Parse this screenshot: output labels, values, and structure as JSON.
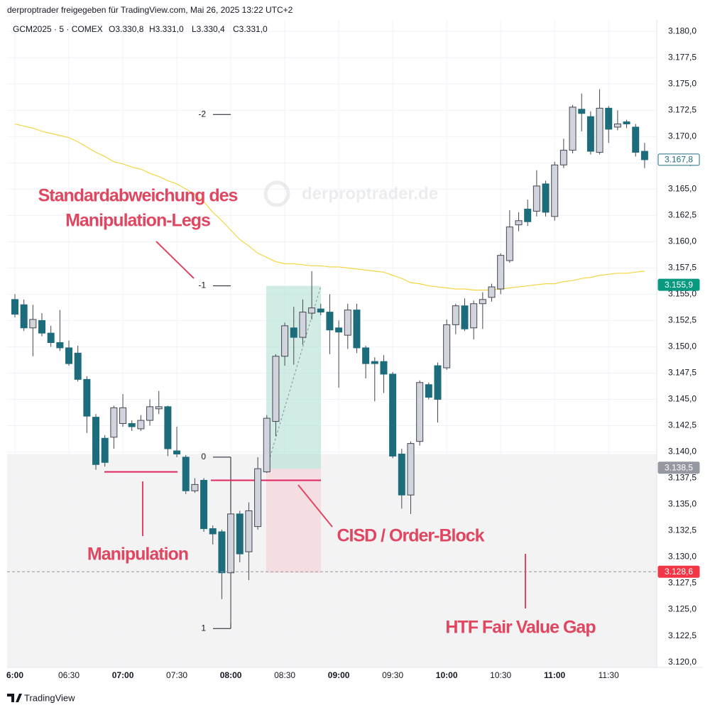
{
  "header": "derproptrader freigegeben für TradingView.com, Mai 26, 2025 13:22 UTC+2",
  "footer": "TradingView",
  "chart_data": {
    "type": "candlestick",
    "symbol": "GCM2025 · 5 · COMEX",
    "ohlc_legend": [
      "O3.330,8",
      "H3.331,0",
      "L3.330,4",
      "C3.331,0"
    ],
    "watermark": "derproptrader.de",
    "categories": [
      "6:00",
      null,
      null,
      null,
      null,
      null,
      "06:30",
      null,
      null,
      null,
      null,
      null,
      "07:00",
      null,
      null,
      null,
      null,
      null,
      "07:30",
      null,
      null,
      null,
      null,
      null,
      "08:00",
      null,
      null,
      null,
      null,
      null,
      "08:30",
      null,
      null,
      null,
      null,
      null,
      "09:00",
      null,
      null,
      null,
      null,
      null,
      "09:30",
      null,
      null,
      null,
      null,
      null,
      "10:00",
      null,
      null,
      null,
      null,
      null,
      "10:30",
      null,
      null,
      null,
      null,
      null,
      "11:00",
      null,
      null,
      null,
      null,
      null,
      "11:30",
      null,
      null,
      null,
      null
    ],
    "open": [
      3154.5,
      3154.0,
      3151.8,
      3152.5,
      3151.3,
      3150.4,
      3149.9,
      3149.4,
      3146.9,
      3143.3,
      3141.3,
      3141.4,
      3142.7,
      3142.7,
      3142.2,
      3143.0,
      3144.1,
      3144.3,
      3140.1,
      3139.5,
      3136.3,
      3137.3,
      3132.7,
      3132.4,
      3128.5,
      3134.1,
      3130.5,
      3132.9,
      3138.1,
      3142.9,
      3149.1,
      3151.8,
      3150.9,
      3153.2,
      3153.6,
      3153.3,
      3151.8,
      3151.1,
      3153.5,
      3149.9,
      3148.6,
      3148.6,
      3147.4,
      3139.8,
      3135.9,
      3141.0,
      3146.4,
      3148.2,
      3148.0,
      3152.1,
      3153.9,
      3151.8,
      3154.1,
      3154.7,
      3155.5,
      3158.2,
      3161.6,
      3163.1,
      3162.9,
      3165.5,
      3162.4,
      3167.3,
      3168.7,
      3172.6,
      3171.9,
      3168.5,
      3172.7,
      3170.9,
      3171.4,
      3170.9,
      3168.6
    ],
    "high": [
      3155.0,
      3154.5,
      3154.0,
      3153.2,
      3152.0,
      3153.5,
      3150.6,
      3150.1,
      3147.2,
      3143.6,
      3141.6,
      3144.4,
      3145.5,
      3143.0,
      3143.5,
      3145.0,
      3145.8,
      3144.4,
      3142.4,
      3139.7,
      3137.5,
      3137.5,
      3133.0,
      3132.6,
      3134.3,
      3134.4,
      3135.2,
      3139.5,
      3143.5,
      3149.3,
      3152.3,
      3153.8,
      3154.5,
      3157.2,
      3154.1,
      3155.0,
      3152.5,
      3154.1,
      3154.1,
      3150.1,
      3149.0,
      3149.2,
      3147.6,
      3140.3,
      3141.0,
      3146.8,
      3146.6,
      3148.5,
      3152.6,
      3154.1,
      3154.6,
      3154.4,
      3155.2,
      3156.0,
      3158.9,
      3163.0,
      3162.8,
      3164.0,
      3166.8,
      3165.8,
      3167.6,
      3169.8,
      3173.0,
      3174.1,
      3172.4,
      3174.5,
      3172.9,
      3172.5,
      3171.6,
      3171.2,
      3169.4
    ],
    "low": [
      3152.8,
      3151.5,
      3149.1,
      3151.0,
      3150.0,
      3149.6,
      3148.2,
      3146.7,
      3141.8,
      3138.3,
      3138.6,
      3140.3,
      3142.4,
      3142.0,
      3142.0,
      3142.5,
      3143.6,
      3139.6,
      3139.5,
      3136.0,
      3136.1,
      3132.4,
      3131.2,
      3126.0,
      3123.7,
      3129.5,
      3127.8,
      3132.6,
      3138.0,
      3141.5,
      3148.2,
      3148.3,
      3150.2,
      3152.6,
      3153.0,
      3149.3,
      3146.1,
      3149.8,
      3149.4,
      3147.0,
      3144.8,
      3145.6,
      3139.4,
      3134.6,
      3134.1,
      3140.6,
      3145.0,
      3142.8,
      3147.8,
      3151.2,
      3151.5,
      3150.7,
      3151.7,
      3154.3,
      3155.0,
      3158.0,
      3161.0,
      3161.5,
      3162.4,
      3162.4,
      3162.0,
      3167.0,
      3168.4,
      3170.5,
      3168.3,
      3168.3,
      3169.4,
      3170.6,
      3170.8,
      3168.1,
      3167.0
    ],
    "close": [
      3153.1,
      3151.8,
      3152.6,
      3151.3,
      3150.4,
      3149.9,
      3148.4,
      3146.9,
      3143.4,
      3138.8,
      3139.0,
      3144.2,
      3144.2,
      3142.4,
      3143.0,
      3144.3,
      3144.3,
      3140.3,
      3139.8,
      3136.3,
      3136.9,
      3132.7,
      3132.2,
      3128.5,
      3134.1,
      3130.3,
      3134.4,
      3138.4,
      3143.2,
      3149.1,
      3152.0,
      3150.9,
      3153.3,
      3153.7,
      3153.3,
      3151.6,
      3151.4,
      3153.5,
      3149.9,
      3148.4,
      3148.4,
      3147.4,
      3139.6,
      3135.9,
      3140.8,
      3146.6,
      3145.2,
      3145.0,
      3152.1,
      3153.9,
      3151.7,
      3154.1,
      3154.5,
      3155.7,
      3158.7,
      3161.4,
      3162.0,
      3161.9,
      3165.3,
      3162.8,
      3167.3,
      3168.7,
      3172.8,
      3172.2,
      3168.6,
      3172.7,
      3170.7,
      3171.2,
      3171.2,
      3168.5,
      3167.8
    ],
    "up_color": "#d1d4dc",
    "down_color": "#1d6c7c",
    "wick_color": "#434651",
    "ma": {
      "color": "#f5d542",
      "values": [
        3171.2,
        3171.0,
        3170.8,
        3170.5,
        3170.3,
        3170.1,
        3169.9,
        3169.5,
        3169.0,
        3168.5,
        3168.1,
        3167.6,
        3167.4,
        3167.1,
        3166.9,
        3166.5,
        3166.2,
        3165.8,
        3165.5,
        3165.0,
        3164.5,
        3163.8,
        3162.8,
        3162.0,
        3161.1,
        3160.2,
        3159.6,
        3158.9,
        3158.5,
        3158.1,
        3157.9,
        3157.9,
        3157.8,
        3157.7,
        3157.7,
        3157.6,
        3157.6,
        3157.5,
        3157.4,
        3157.3,
        3157.2,
        3157.1,
        3156.8,
        3156.5,
        3156.1,
        3156.0,
        3155.8,
        3155.7,
        3155.6,
        3155.5,
        3155.5,
        3155.4,
        3155.4,
        3155.4,
        3155.5,
        3155.6,
        3155.7,
        3155.8,
        3155.9,
        3156.0,
        3156.0,
        3156.2,
        3156.3,
        3156.5,
        3156.6,
        3156.8,
        3156.9,
        3157.0,
        3157.0,
        3157.1,
        3157.2
      ]
    },
    "ylim": [
      3119.5,
      3181.1
    ],
    "yticks": [
      {
        "value": 3120.0,
        "label": "3.120,0"
      },
      {
        "value": 3122.5,
        "label": "3.122,5"
      },
      {
        "value": 3125.0,
        "label": "3.125,0"
      },
      {
        "value": 3127.5,
        "label": "3.127,5"
      },
      {
        "value": 3130.0,
        "label": "3.130,0"
      },
      {
        "value": 3132.5,
        "label": "3.132,5"
      },
      {
        "value": 3135.0,
        "label": "3.135,0"
      },
      {
        "value": 3137.5,
        "label": "3.137,5"
      },
      {
        "value": 3140.0,
        "label": "3.140,0"
      },
      {
        "value": 3142.5,
        "label": "3.142,5"
      },
      {
        "value": 3145.0,
        "label": "3.145,0"
      },
      {
        "value": 3147.5,
        "label": "3.147,5"
      },
      {
        "value": 3150.0,
        "label": "3.150,0"
      },
      {
        "value": 3152.5,
        "label": "3.152,5"
      },
      {
        "value": 3155.0,
        "label": "3.155,0"
      },
      {
        "value": 3157.5,
        "label": "3.157,5"
      },
      {
        "value": 3160.0,
        "label": "3.160,0"
      },
      {
        "value": 3162.5,
        "label": "3.162,5"
      },
      {
        "value": 3165.0,
        "label": "3.165,0"
      },
      {
        "value": 3167.5,
        "label": "3.167,5"
      },
      {
        "value": 3170.0,
        "label": "3.170,0"
      },
      {
        "value": 3172.5,
        "label": "3.172,5"
      },
      {
        "value": 3175.0,
        "label": "3.175,0"
      },
      {
        "value": 3177.5,
        "label": "3.177,5"
      },
      {
        "value": 3180.0,
        "label": "3.180,0"
      }
    ],
    "grid": true,
    "price_labels": [
      {
        "value": 3167.8,
        "label": "3.167,8",
        "color": "#1d6c7c",
        "style": "outline"
      },
      {
        "value": 3155.9,
        "label": "3.155,9",
        "color": "#089981",
        "style": "filled"
      },
      {
        "value": 3138.5,
        "label": "3.138,5",
        "color": "#9598a1",
        "style": "filled"
      },
      {
        "value": 3128.6,
        "label": "3.128,6",
        "color": "#f23645",
        "style": "filled",
        "dashed": true
      }
    ],
    "fib_levels": [
      {
        "value": 3172.1,
        "label": "-2"
      },
      {
        "value": 3155.8,
        "label": "-1"
      },
      {
        "value": 3139.5,
        "label": "0"
      },
      {
        "value": 3123.2,
        "label": "1"
      }
    ],
    "zones": {
      "target": [
        3155.8,
        3138.4
      ],
      "order_block": [
        3138.4,
        3128.5
      ],
      "fvg": [
        3139.8,
        3119.5
      ]
    },
    "levels": {
      "manipulation_low": 3138.1,
      "cisd": 3137.3
    },
    "annotations": [
      "Standardabweichung des",
      "Manipulation-Legs",
      "Manipulation",
      "CISD / Order-Block",
      "HTF Fair Value Gap"
    ]
  }
}
